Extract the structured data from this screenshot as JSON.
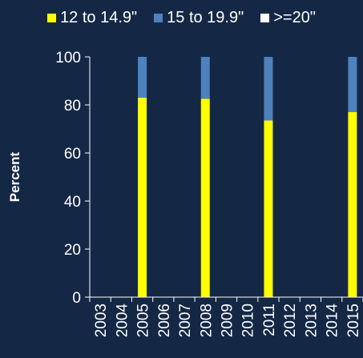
{
  "chart_data": {
    "type": "bar",
    "stacked": true,
    "title": "",
    "xlabel": "",
    "ylabel": "Percent",
    "ylim": [
      0,
      100
    ],
    "yticks": [
      0,
      20,
      40,
      60,
      80,
      100
    ],
    "categories": [
      "2003",
      "2004",
      "2005",
      "2006",
      "2007",
      "2008",
      "2009",
      "2010",
      "2011",
      "2012",
      "2013",
      "2014",
      "2015"
    ],
    "series": [
      {
        "name": "12 to 14.9\"",
        "color": "#ffff00",
        "values": [
          null,
          null,
          83,
          null,
          null,
          82.5,
          null,
          null,
          73.5,
          null,
          null,
          null,
          77
        ]
      },
      {
        "name": "15 to 19.9\"",
        "color": "#4f81bd",
        "values": [
          null,
          null,
          17,
          null,
          null,
          17.5,
          null,
          null,
          26.5,
          null,
          null,
          null,
          23
        ]
      },
      {
        "name": ">=20\"",
        "color": "#ffffff",
        "values": [
          null,
          null,
          0,
          null,
          null,
          0,
          null,
          null,
          0,
          null,
          null,
          null,
          0
        ]
      }
    ],
    "grid": false,
    "legend_position": "top",
    "colors": {
      "background": "#142846",
      "axis": "#ffffff",
      "text": "#ffffff"
    }
  }
}
